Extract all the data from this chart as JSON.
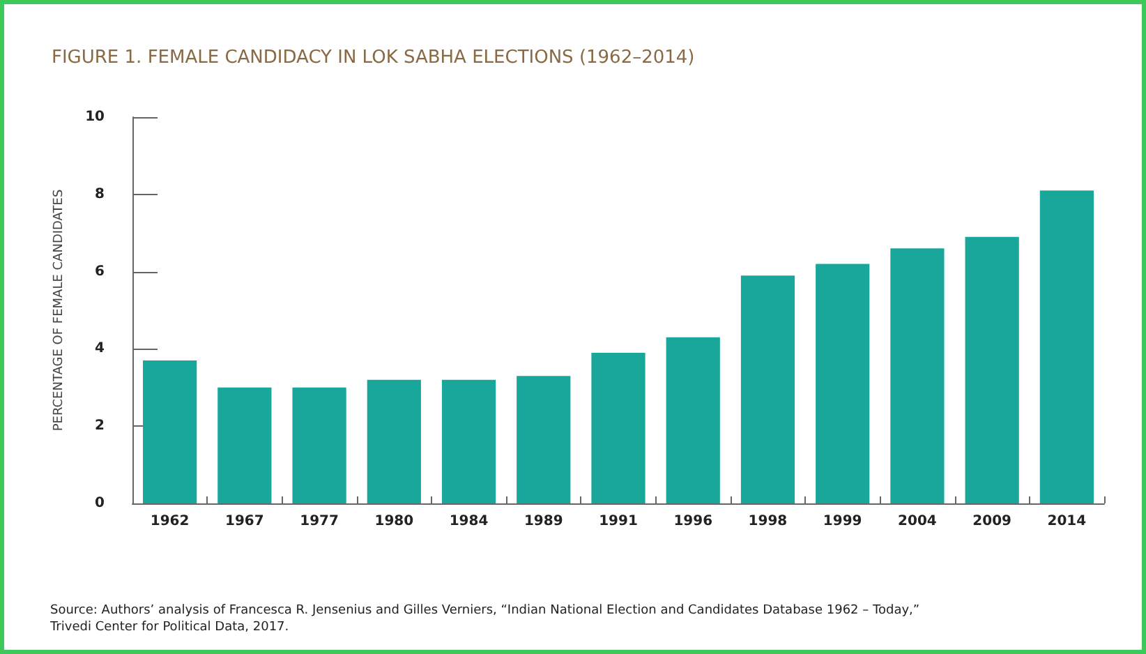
{
  "chart_data": {
    "type": "bar",
    "title": "FIGURE 1. FEMALE CANDIDACY IN LOK SABHA ELECTIONS (1962–2014)",
    "ylabel": "PERCENTAGE OF FEMALE CANDIDATES",
    "categories": [
      "1962",
      "1967",
      "1977",
      "1980",
      "1984",
      "1989",
      "1991",
      "1996",
      "1998",
      "1999",
      "2004",
      "2009",
      "2014"
    ],
    "values": [
      3.7,
      3.0,
      3.0,
      3.2,
      3.2,
      3.3,
      3.9,
      4.3,
      5.9,
      6.2,
      6.6,
      6.9,
      8.1
    ],
    "color": "#1aa79b",
    "ylim": [
      0,
      10
    ],
    "yticks": [
      0,
      2,
      4,
      6,
      8,
      10
    ],
    "grid": false,
    "annotations": [
      "Source: Authors’ analysis of Francesca R. Jensenius and Gilles Verniers, “Indian National Election and Candidates Database 1962 – Today,” Trivedi Center for Political Data, 2017."
    ]
  }
}
